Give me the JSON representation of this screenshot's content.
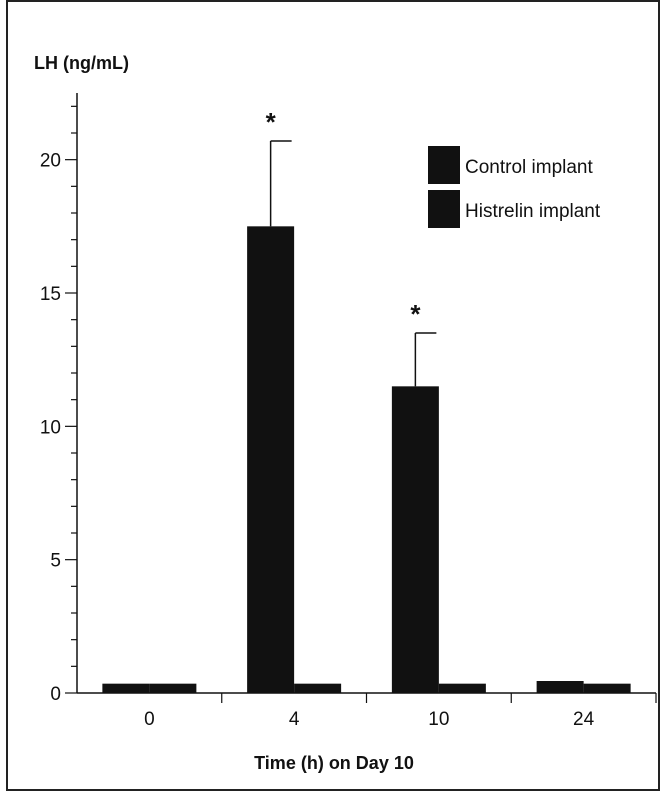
{
  "chart_data": {
    "type": "bar",
    "ylabel": "LH (ng/mL)",
    "xlabel": "Time (h) on Day 10",
    "categories": [
      "0",
      "4",
      "10",
      "24"
    ],
    "ylim": [
      0,
      22.5
    ],
    "yticks": [
      0,
      5,
      10,
      15,
      20
    ],
    "grid": false,
    "legend_position": "top-right",
    "series": [
      {
        "name": "Control implant",
        "color": "#111111",
        "values": [
          0.35,
          17.5,
          11.5,
          0.45
        ],
        "errors": [
          0,
          3.2,
          2.0,
          0
        ],
        "annotations": [
          "",
          "*",
          "*",
          ""
        ]
      },
      {
        "name": "Histrelin implant",
        "color": "#111111",
        "values": [
          0.35,
          0.35,
          0.35,
          0.35
        ],
        "errors": [
          0,
          0,
          0,
          0
        ],
        "annotations": [
          "",
          "",
          "",
          ""
        ]
      }
    ]
  }
}
